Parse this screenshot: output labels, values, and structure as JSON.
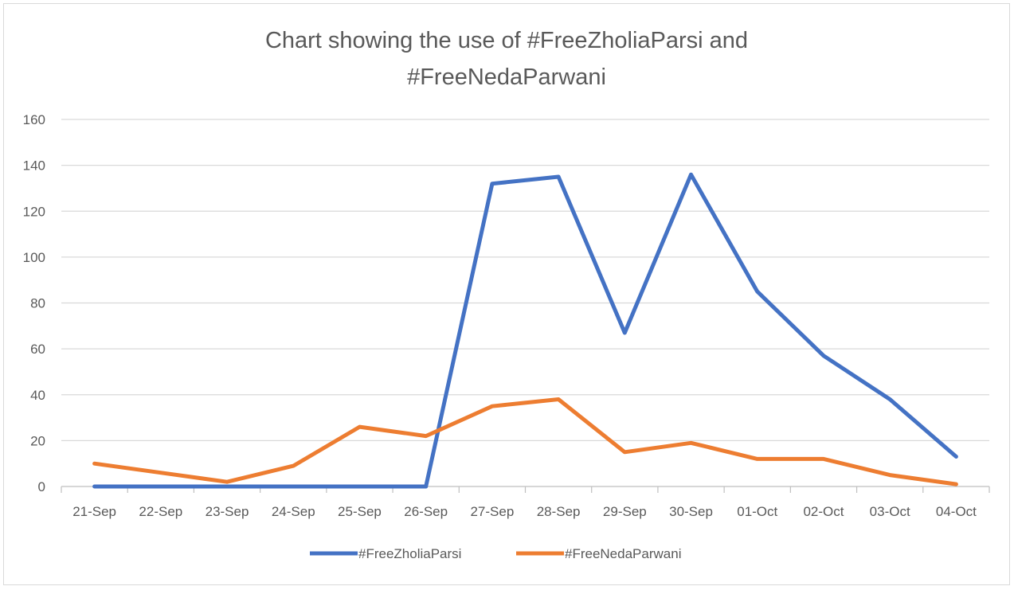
{
  "chart_data": {
    "type": "line",
    "title_lines": [
      "Chart showing the use of #FreeZholiaParsi and",
      "#FreeNedaParwani"
    ],
    "categories": [
      "21-Sep",
      "22-Sep",
      "23-Sep",
      "24-Sep",
      "25-Sep",
      "26-Sep",
      "27-Sep",
      "28-Sep",
      "29-Sep",
      "30-Sep",
      "01-Oct",
      "02-Oct",
      "03-Oct",
      "04-Oct"
    ],
    "ylim": [
      0,
      160
    ],
    "yticks": [
      0,
      20,
      40,
      60,
      80,
      100,
      120,
      140,
      160
    ],
    "grid": true,
    "legend_position": "bottom",
    "series": [
      {
        "name": "#FreeZholiaParsi",
        "color": "#4472c4",
        "values": [
          0,
          0,
          0,
          0,
          0,
          0,
          132,
          135,
          67,
          136,
          85,
          57,
          38,
          13
        ]
      },
      {
        "name": "#FreeNedaParwani",
        "color": "#ed7d31",
        "values": [
          10,
          6,
          2,
          9,
          26,
          22,
          35,
          38,
          15,
          19,
          12,
          12,
          5,
          1
        ]
      }
    ]
  }
}
